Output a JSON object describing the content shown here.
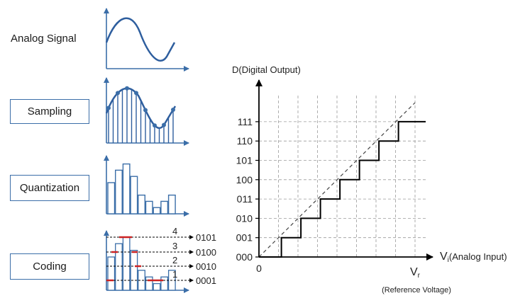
{
  "stages": {
    "analog": "Analog Signal",
    "sampling": "Sampling",
    "quantization": "Quantization",
    "coding": "Coding"
  },
  "coding_levels": [
    {
      "level": "4",
      "code": "0101"
    },
    {
      "level": "3",
      "code": "0100"
    },
    {
      "level": "2",
      "code": "0010"
    },
    {
      "level": "1",
      "code": "0001"
    }
  ],
  "quantization_bars": [
    5,
    7,
    8,
    6,
    3,
    2,
    1,
    2,
    3
  ],
  "colors": {
    "signal": "#2e5e9e",
    "axis": "#3b6ea8",
    "grid": "#9a9a9a",
    "marker": "#cc2222",
    "step": "#000000"
  },
  "chart_data": {
    "type": "line",
    "ylabel": "D(Digital Output)",
    "xlabel_symbol": "V",
    "xlabel_sub": "i",
    "xlabel_text": "(Analog Input)",
    "vr_symbol": "V",
    "vr_sub": "r",
    "vr_caption": "(Reference Voltage)",
    "x_origin_label": "0",
    "y_ticks": [
      "000",
      "001",
      "010",
      "011",
      "100",
      "101",
      "110",
      "111"
    ],
    "x_divisions": 8,
    "step_values": [
      0,
      1,
      2,
      3,
      4,
      5,
      6,
      7
    ],
    "ideal_line": true,
    "grid": true
  }
}
